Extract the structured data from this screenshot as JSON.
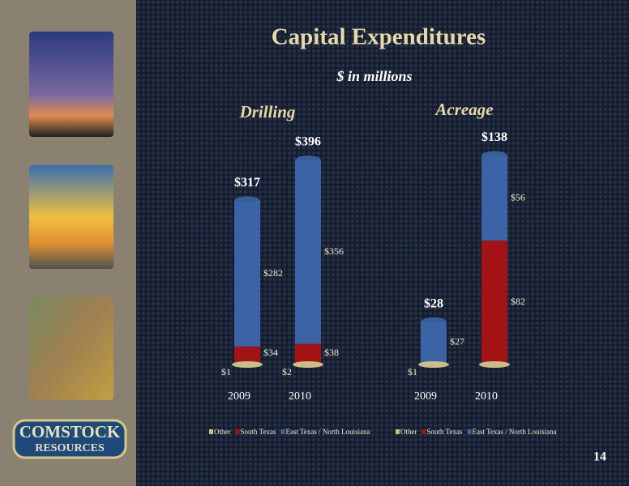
{
  "slide": {
    "title": "Capital Expenditures",
    "subtitle": "$ in millions",
    "page_number": "14",
    "logo_top": "COMSTOCK",
    "logo_bottom": "RESOURCES"
  },
  "chart_data": [
    {
      "type": "stacked-bar",
      "title": "Drilling",
      "categories": [
        "2009",
        "2010"
      ],
      "series": [
        {
          "name": "Other",
          "color": "#c9bf86",
          "values": [
            1,
            2
          ],
          "value_labels": [
            "$1",
            "$2"
          ]
        },
        {
          "name": "South Texas",
          "color": "#a31214",
          "values": [
            34,
            38
          ],
          "value_labels": [
            "$34",
            "$38"
          ]
        },
        {
          "name": "East Texas / North Louisiana",
          "color": "#3b64a6",
          "values": [
            282,
            356
          ],
          "value_labels": [
            "$282",
            "$356"
          ]
        }
      ],
      "totals": [
        317,
        396
      ],
      "total_labels": [
        "$317",
        "$396"
      ],
      "ylim": [
        0,
        440
      ]
    },
    {
      "type": "stacked-bar",
      "title": "Acreage",
      "categories": [
        "2009",
        "2010"
      ],
      "series": [
        {
          "name": "Other",
          "color": "#c9bf86",
          "values": [
            1,
            null
          ],
          "value_labels": [
            "$1",
            null
          ]
        },
        {
          "name": "South Texas",
          "color": "#a31214",
          "values": [
            null,
            82
          ],
          "value_labels": [
            null,
            "$82"
          ]
        },
        {
          "name": "East Texas / North Louisiana",
          "color": "#3b64a6",
          "values": [
            27,
            56
          ],
          "value_labels": [
            "$27",
            "$56"
          ]
        }
      ],
      "totals": [
        28,
        138
      ],
      "total_labels": [
        "$28",
        "$138"
      ],
      "ylim": [
        0,
        150
      ]
    }
  ]
}
